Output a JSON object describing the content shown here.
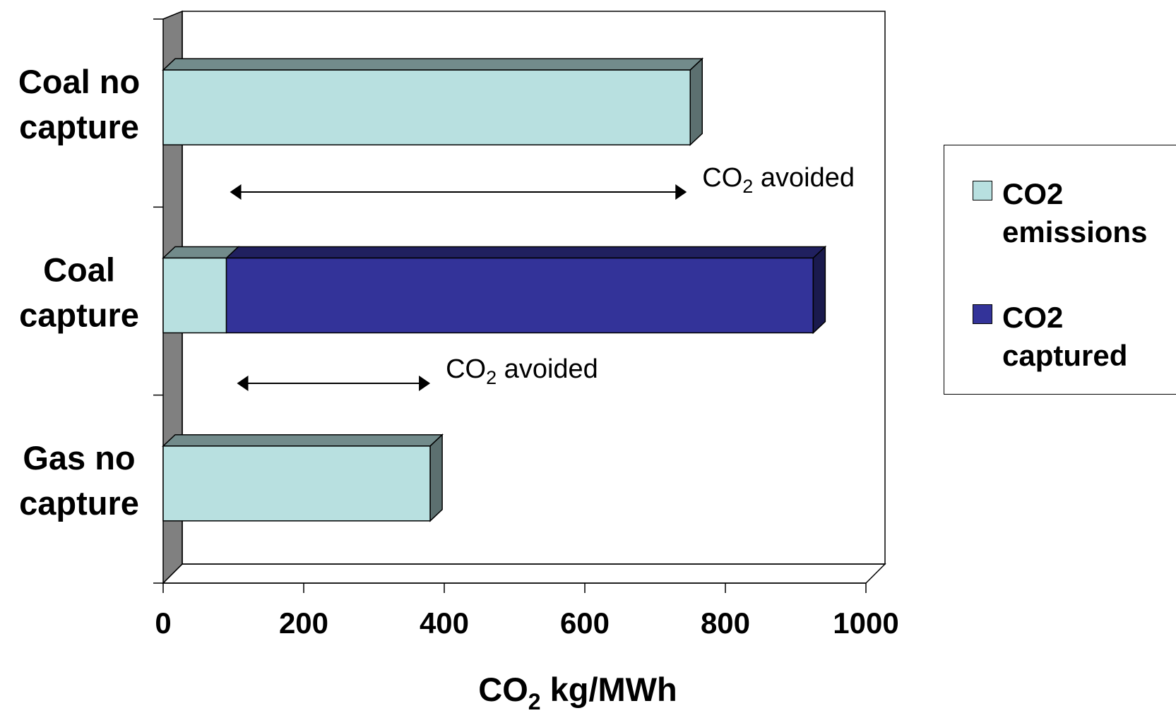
{
  "chart_data": {
    "type": "bar",
    "orientation": "horizontal",
    "stacked": true,
    "style": "3d",
    "categories": [
      "Coal no\ncapture",
      "Coal\ncapture",
      "Gas no\ncapture"
    ],
    "series": [
      {
        "name": "CO2\nemissions",
        "color": "#b8e0e0",
        "values": [
          750,
          90,
          380
        ]
      },
      {
        "name": "CO2\ncaptured",
        "color": "#333399",
        "values": [
          0,
          835,
          0
        ]
      }
    ],
    "xlim": [
      0,
      1000
    ],
    "xticks": [
      "0",
      "200",
      "400",
      "600",
      "800",
      "1000"
    ],
    "xlabel": {
      "main": "CO",
      "sub": "2",
      "rest": " kg/MWh"
    },
    "legend_position": "right",
    "annotations": [
      {
        "text": "CO",
        "sub": "2",
        "rest": " avoided",
        "from": 95,
        "to": 745,
        "between": [
          "Coal no\ncapture",
          "Coal\ncapture"
        ]
      },
      {
        "text": "CO",
        "sub": "2",
        "rest": " avoided",
        "from": 105,
        "to": 380,
        "between": [
          "Coal\ncapture",
          "Gas no\ncapture"
        ]
      }
    ]
  },
  "legend": {
    "items": [
      {
        "label": "CO2\nemissions",
        "color": "#b8e0e0"
      },
      {
        "label": "CO2\ncaptured",
        "color": "#333399"
      }
    ]
  }
}
